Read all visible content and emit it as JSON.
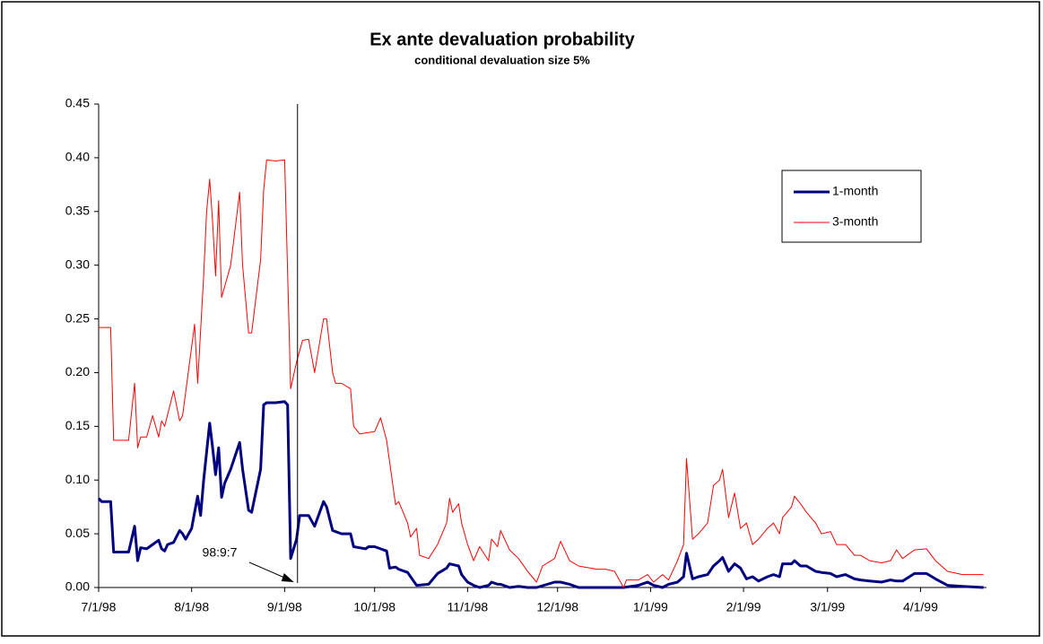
{
  "chart_data": {
    "type": "line",
    "title": "Ex ante devaluation probability",
    "subtitle": "conditional devaluation size 5%",
    "xlim": [
      0,
      296
    ],
    "xticks": [
      {
        "value": 0,
        "label": "7/1/98"
      },
      {
        "value": 31,
        "label": "8/1/98"
      },
      {
        "value": 62,
        "label": "9/1/98"
      },
      {
        "value": 92,
        "label": "10/1/98"
      },
      {
        "value": 123,
        "label": "11/1/98"
      },
      {
        "value": 153,
        "label": "12/1/98"
      },
      {
        "value": 184,
        "label": "1/1/99"
      },
      {
        "value": 215,
        "label": "2/1/99"
      },
      {
        "value": 243,
        "label": "3/1/99"
      },
      {
        "value": 274,
        "label": "4/1/99"
      }
    ],
    "ylim": [
      0,
      0.45
    ],
    "yticks": [
      {
        "value": 0,
        "label": "0.00"
      },
      {
        "value": 0.05,
        "label": "0.05"
      },
      {
        "value": 0.1,
        "label": "0.10"
      },
      {
        "value": 0.15,
        "label": "0.15"
      },
      {
        "value": 0.2,
        "label": "0.20"
      },
      {
        "value": 0.25,
        "label": "0.25"
      },
      {
        "value": 0.3,
        "label": "0.30"
      },
      {
        "value": 0.35,
        "label": "0.35"
      },
      {
        "value": 0.4,
        "label": "0.40"
      },
      {
        "value": 0.45,
        "label": "0.45"
      }
    ],
    "legend": "upper right",
    "annotation": {
      "text": "98:9:7",
      "x": 66.3
    },
    "series": [
      {
        "name": "1-month",
        "color": "#000080",
        "x": [
          0,
          1,
          4,
          5,
          10,
          12,
          13,
          14,
          16,
          18,
          20,
          21,
          22,
          23,
          25,
          27,
          28,
          29,
          31,
          32,
          33,
          34,
          35,
          37,
          38,
          39,
          40,
          41,
          42,
          44,
          47,
          48,
          50,
          51,
          54,
          55,
          56,
          59,
          62,
          63,
          64,
          66,
          67,
          70,
          72,
          75,
          76,
          78,
          79,
          81,
          84,
          85,
          87,
          89,
          90,
          92,
          94,
          96,
          97,
          99,
          100,
          103,
          104,
          106,
          110,
          113,
          116,
          117,
          120,
          121,
          123,
          125,
          127,
          130,
          131,
          133,
          134,
          137,
          140,
          143,
          146,
          152,
          154,
          157,
          160,
          175,
          180,
          183,
          185,
          188,
          190,
          193,
          195,
          196,
          198,
          200,
          203,
          205,
          207,
          208,
          210,
          212,
          214,
          216,
          218,
          220,
          223,
          225,
          227,
          228,
          231,
          232,
          234,
          236,
          239,
          241,
          244,
          246,
          249,
          252,
          254,
          257,
          261,
          264,
          266,
          268,
          272,
          276,
          279,
          283,
          288,
          295
        ],
        "values": [
          0.083,
          0.08,
          0.08,
          0.033,
          0.033,
          0.057,
          0.025,
          0.037,
          0.036,
          0.04,
          0.044,
          0.036,
          0.034,
          0.04,
          0.042,
          0.053,
          0.05,
          0.045,
          0.055,
          0.07,
          0.085,
          0.067,
          0.1,
          0.153,
          0.13,
          0.105,
          0.13,
          0.084,
          0.097,
          0.11,
          0.135,
          0.11,
          0.072,
          0.07,
          0.11,
          0.17,
          0.172,
          0.172,
          0.173,
          0.17,
          0.027,
          0.045,
          0.067,
          0.067,
          0.057,
          0.08,
          0.075,
          0.053,
          0.052,
          0.05,
          0.05,
          0.038,
          0.037,
          0.036,
          0.038,
          0.038,
          0.036,
          0.034,
          0.018,
          0.019,
          0.017,
          0.014,
          0.01,
          0.002,
          0.003,
          0.013,
          0.018,
          0.022,
          0.02,
          0.012,
          0.005,
          0.002,
          0,
          0.002,
          0.005,
          0.003,
          0.003,
          0,
          0.001,
          0,
          0,
          0.005,
          0.005,
          0.003,
          0,
          0,
          0.002,
          0.005,
          0.002,
          0,
          0.003,
          0.005,
          0.01,
          0.032,
          0.008,
          0.01,
          0.012,
          0.02,
          0.025,
          0.028,
          0.015,
          0.022,
          0.018,
          0.008,
          0.01,
          0.006,
          0.01,
          0.012,
          0.01,
          0.022,
          0.022,
          0.025,
          0.02,
          0.02,
          0.015,
          0.014,
          0.013,
          0.01,
          0.012,
          0.008,
          0.007,
          0.006,
          0.005,
          0.007,
          0.006,
          0.006,
          0.013,
          0.013,
          0.008,
          0.002,
          0.001,
          0
        ]
      },
      {
        "name": "3-month",
        "color": "#ff0000",
        "x": [
          0,
          4,
          5,
          10,
          12,
          13,
          14,
          16,
          18,
          20,
          21,
          22,
          25,
          27,
          28,
          32,
          33,
          35,
          36,
          37,
          38,
          39,
          40,
          41,
          42,
          44,
          47,
          48,
          50,
          51,
          54,
          55,
          56,
          59,
          62,
          64,
          66,
          68,
          70,
          72,
          75,
          76,
          78,
          79,
          81,
          84,
          85,
          87,
          92,
          94,
          96,
          99,
          100,
          103,
          104,
          106,
          107,
          110,
          113,
          116,
          117,
          118,
          120,
          121,
          123,
          125,
          127,
          130,
          131,
          133,
          134,
          137,
          140,
          143,
          146,
          148,
          152,
          154,
          157,
          160,
          166,
          169,
          172,
          175,
          176,
          180,
          183,
          185,
          188,
          190,
          193,
          195,
          196,
          198,
          200,
          203,
          205,
          207,
          208,
          210,
          212,
          214,
          216,
          218,
          220,
          223,
          225,
          227,
          228,
          231,
          232,
          234,
          236,
          239,
          241,
          244,
          246,
          249,
          252,
          254,
          257,
          261,
          264,
          266,
          268,
          272,
          276,
          279,
          283,
          288,
          295
        ],
        "values": [
          0.242,
          0.242,
          0.137,
          0.137,
          0.19,
          0.13,
          0.14,
          0.14,
          0.16,
          0.14,
          0.155,
          0.15,
          0.183,
          0.155,
          0.16,
          0.245,
          0.19,
          0.29,
          0.35,
          0.38,
          0.34,
          0.29,
          0.36,
          0.27,
          0.28,
          0.3,
          0.368,
          0.3,
          0.237,
          0.237,
          0.305,
          0.37,
          0.398,
          0.397,
          0.398,
          0.185,
          0.21,
          0.23,
          0.231,
          0.2,
          0.25,
          0.25,
          0.2,
          0.19,
          0.19,
          0.185,
          0.15,
          0.143,
          0.145,
          0.158,
          0.137,
          0.077,
          0.08,
          0.06,
          0.047,
          0.055,
          0.03,
          0.027,
          0.04,
          0.06,
          0.083,
          0.07,
          0.078,
          0.06,
          0.04,
          0.025,
          0.038,
          0.025,
          0.045,
          0.038,
          0.053,
          0.035,
          0.027,
          0.015,
          0.005,
          0.02,
          0.027,
          0.043,
          0.025,
          0.02,
          0.017,
          0.017,
          0.015,
          0,
          0.007,
          0.007,
          0.012,
          0.005,
          0.012,
          0.007,
          0.025,
          0.04,
          0.12,
          0.045,
          0.05,
          0.06,
          0.095,
          0.1,
          0.11,
          0.065,
          0.088,
          0.055,
          0.06,
          0.04,
          0.045,
          0.055,
          0.06,
          0.05,
          0.065,
          0.075,
          0.085,
          0.078,
          0.07,
          0.06,
          0.05,
          0.052,
          0.04,
          0.04,
          0.03,
          0.03,
          0.025,
          0.023,
          0.025,
          0.035,
          0.027,
          0.035,
          0.036,
          0.025,
          0.015,
          0.012,
          0.012
        ]
      }
    ]
  }
}
